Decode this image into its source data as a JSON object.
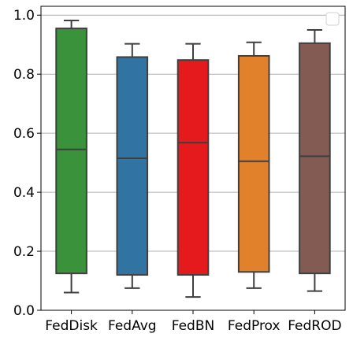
{
  "chart_data": {
    "type": "box",
    "categories": [
      "FedDisk",
      "FedAvg",
      "FedBN",
      "FedProx",
      "FedROD"
    ],
    "boxes": [
      {
        "category": "FedDisk",
        "whisker_low": 0.06,
        "q1": 0.125,
        "median": 0.545,
        "q3": 0.955,
        "whisker_high": 0.982,
        "color": "#3a923a"
      },
      {
        "category": "FedAvg",
        "whisker_low": 0.075,
        "q1": 0.12,
        "median": 0.515,
        "q3": 0.858,
        "whisker_high": 0.903,
        "color": "#3274a1"
      },
      {
        "category": "FedBN",
        "whisker_low": 0.045,
        "q1": 0.12,
        "median": 0.568,
        "q3": 0.848,
        "whisker_high": 0.903,
        "color": "#e41a1c"
      },
      {
        "category": "FedProx",
        "whisker_low": 0.075,
        "q1": 0.13,
        "median": 0.505,
        "q3": 0.862,
        "whisker_high": 0.908,
        "color": "#e1812c"
      },
      {
        "category": "FedROD",
        "whisker_low": 0.065,
        "q1": 0.125,
        "median": 0.522,
        "q3": 0.905,
        "whisker_high": 0.95,
        "color": "#845b53"
      }
    ],
    "y_ticks": [
      0.0,
      0.2,
      0.4,
      0.6,
      0.8,
      1.0
    ],
    "y_tick_labels": [
      "0.0",
      "0.2",
      "0.4",
      "0.6",
      "0.8",
      "1.0"
    ],
    "ylim": [
      0.0,
      1.03
    ],
    "grid": "horizontal",
    "legend": "top-right, empty",
    "title": "",
    "xlabel": "",
    "ylabel": "",
    "line_color": "#3f3f3f",
    "grid_color": "#b0b0b0"
  }
}
